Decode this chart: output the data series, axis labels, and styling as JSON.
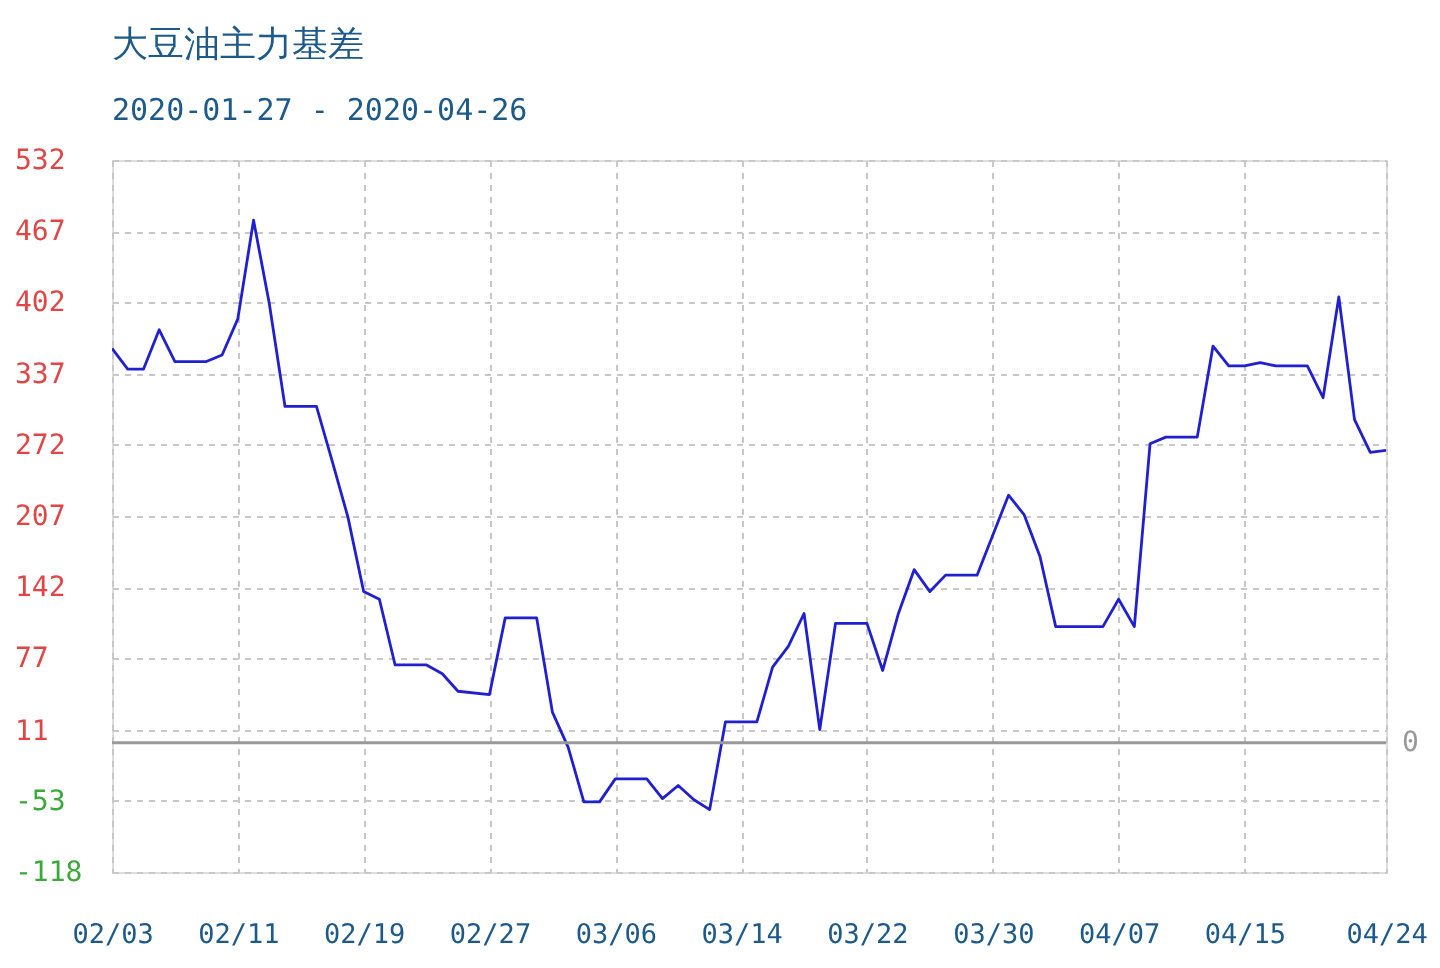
{
  "chart_data": {
    "type": "line",
    "title": "大豆油主力基差",
    "subtitle": "2020-01-27 - 2020-04-26",
    "x": [
      "2020-02-03",
      "2020-02-04",
      "2020-02-05",
      "2020-02-06",
      "2020-02-07",
      "2020-02-09",
      "2020-02-10",
      "2020-02-11",
      "2020-02-12",
      "2020-02-13",
      "2020-02-14",
      "2020-02-16",
      "2020-02-17",
      "2020-02-18",
      "2020-02-19",
      "2020-02-20",
      "2020-02-21",
      "2020-02-23",
      "2020-02-24",
      "2020-02-25",
      "2020-02-27",
      "2020-02-28",
      "2020-03-01",
      "2020-03-02",
      "2020-03-03",
      "2020-03-04",
      "2020-03-05",
      "2020-03-06",
      "2020-03-08",
      "2020-03-09",
      "2020-03-10",
      "2020-03-11",
      "2020-03-12",
      "2020-03-13",
      "2020-03-15",
      "2020-03-16",
      "2020-03-17",
      "2020-03-18",
      "2020-03-19",
      "2020-03-20",
      "2020-03-22",
      "2020-03-23",
      "2020-03-24",
      "2020-03-25",
      "2020-03-26",
      "2020-03-27",
      "2020-03-29",
      "2020-03-31",
      "2020-04-01",
      "2020-04-02",
      "2020-04-03",
      "2020-04-06",
      "2020-04-07",
      "2020-04-08",
      "2020-04-09",
      "2020-04-10",
      "2020-04-12",
      "2020-04-13",
      "2020-04-14",
      "2020-04-15",
      "2020-04-16",
      "2020-04-17",
      "2020-04-19",
      "2020-04-20",
      "2020-04-21",
      "2020-04-22",
      "2020-04-23",
      "2020-04-24"
    ],
    "series": [
      {
        "color": "#2020d0",
        "values": [
          360,
          341,
          341,
          377,
          348,
          348,
          354,
          387,
          477,
          401,
          307,
          307,
          257,
          206,
          138,
          131,
          71,
          71,
          63,
          47,
          44,
          114,
          114,
          28,
          -4,
          -54,
          -54,
          -33,
          -33,
          -51,
          -39,
          -52,
          -61,
          19,
          19,
          69,
          88,
          118,
          12,
          109,
          109,
          66,
          118,
          158,
          138,
          153,
          153,
          226,
          208,
          170,
          106,
          106,
          131,
          106,
          273,
          279,
          279,
          362,
          344,
          344,
          347,
          344,
          344,
          315,
          407,
          295,
          265,
          267
        ]
      }
    ],
    "xlim": [
      "2020-02-03",
      "2020-04-24"
    ],
    "xticks": [
      {
        "value": "2020-02-03",
        "label": "02/03"
      },
      {
        "value": "2020-02-11",
        "label": "02/11"
      },
      {
        "value": "2020-02-19",
        "label": "02/19"
      },
      {
        "value": "2020-02-27",
        "label": "02/27"
      },
      {
        "value": "2020-03-06",
        "label": "03/06"
      },
      {
        "value": "2020-03-14",
        "label": "03/14"
      },
      {
        "value": "2020-03-22",
        "label": "03/22"
      },
      {
        "value": "2020-03-30",
        "label": "03/30"
      },
      {
        "value": "2020-04-07",
        "label": "04/07"
      },
      {
        "value": "2020-04-15",
        "label": "04/15"
      },
      {
        "value": "2020-04-24",
        "label": "04/24"
      }
    ],
    "ylim": [
      -118,
      532
    ],
    "yticks": [
      -118,
      -53,
      11,
      77,
      142,
      207,
      272,
      337,
      402,
      467,
      532
    ],
    "ref_lines": [
      {
        "axis": "y",
        "value": 0,
        "label": "0",
        "color": "#999999"
      }
    ],
    "grid": true,
    "line_style": "solid"
  }
}
